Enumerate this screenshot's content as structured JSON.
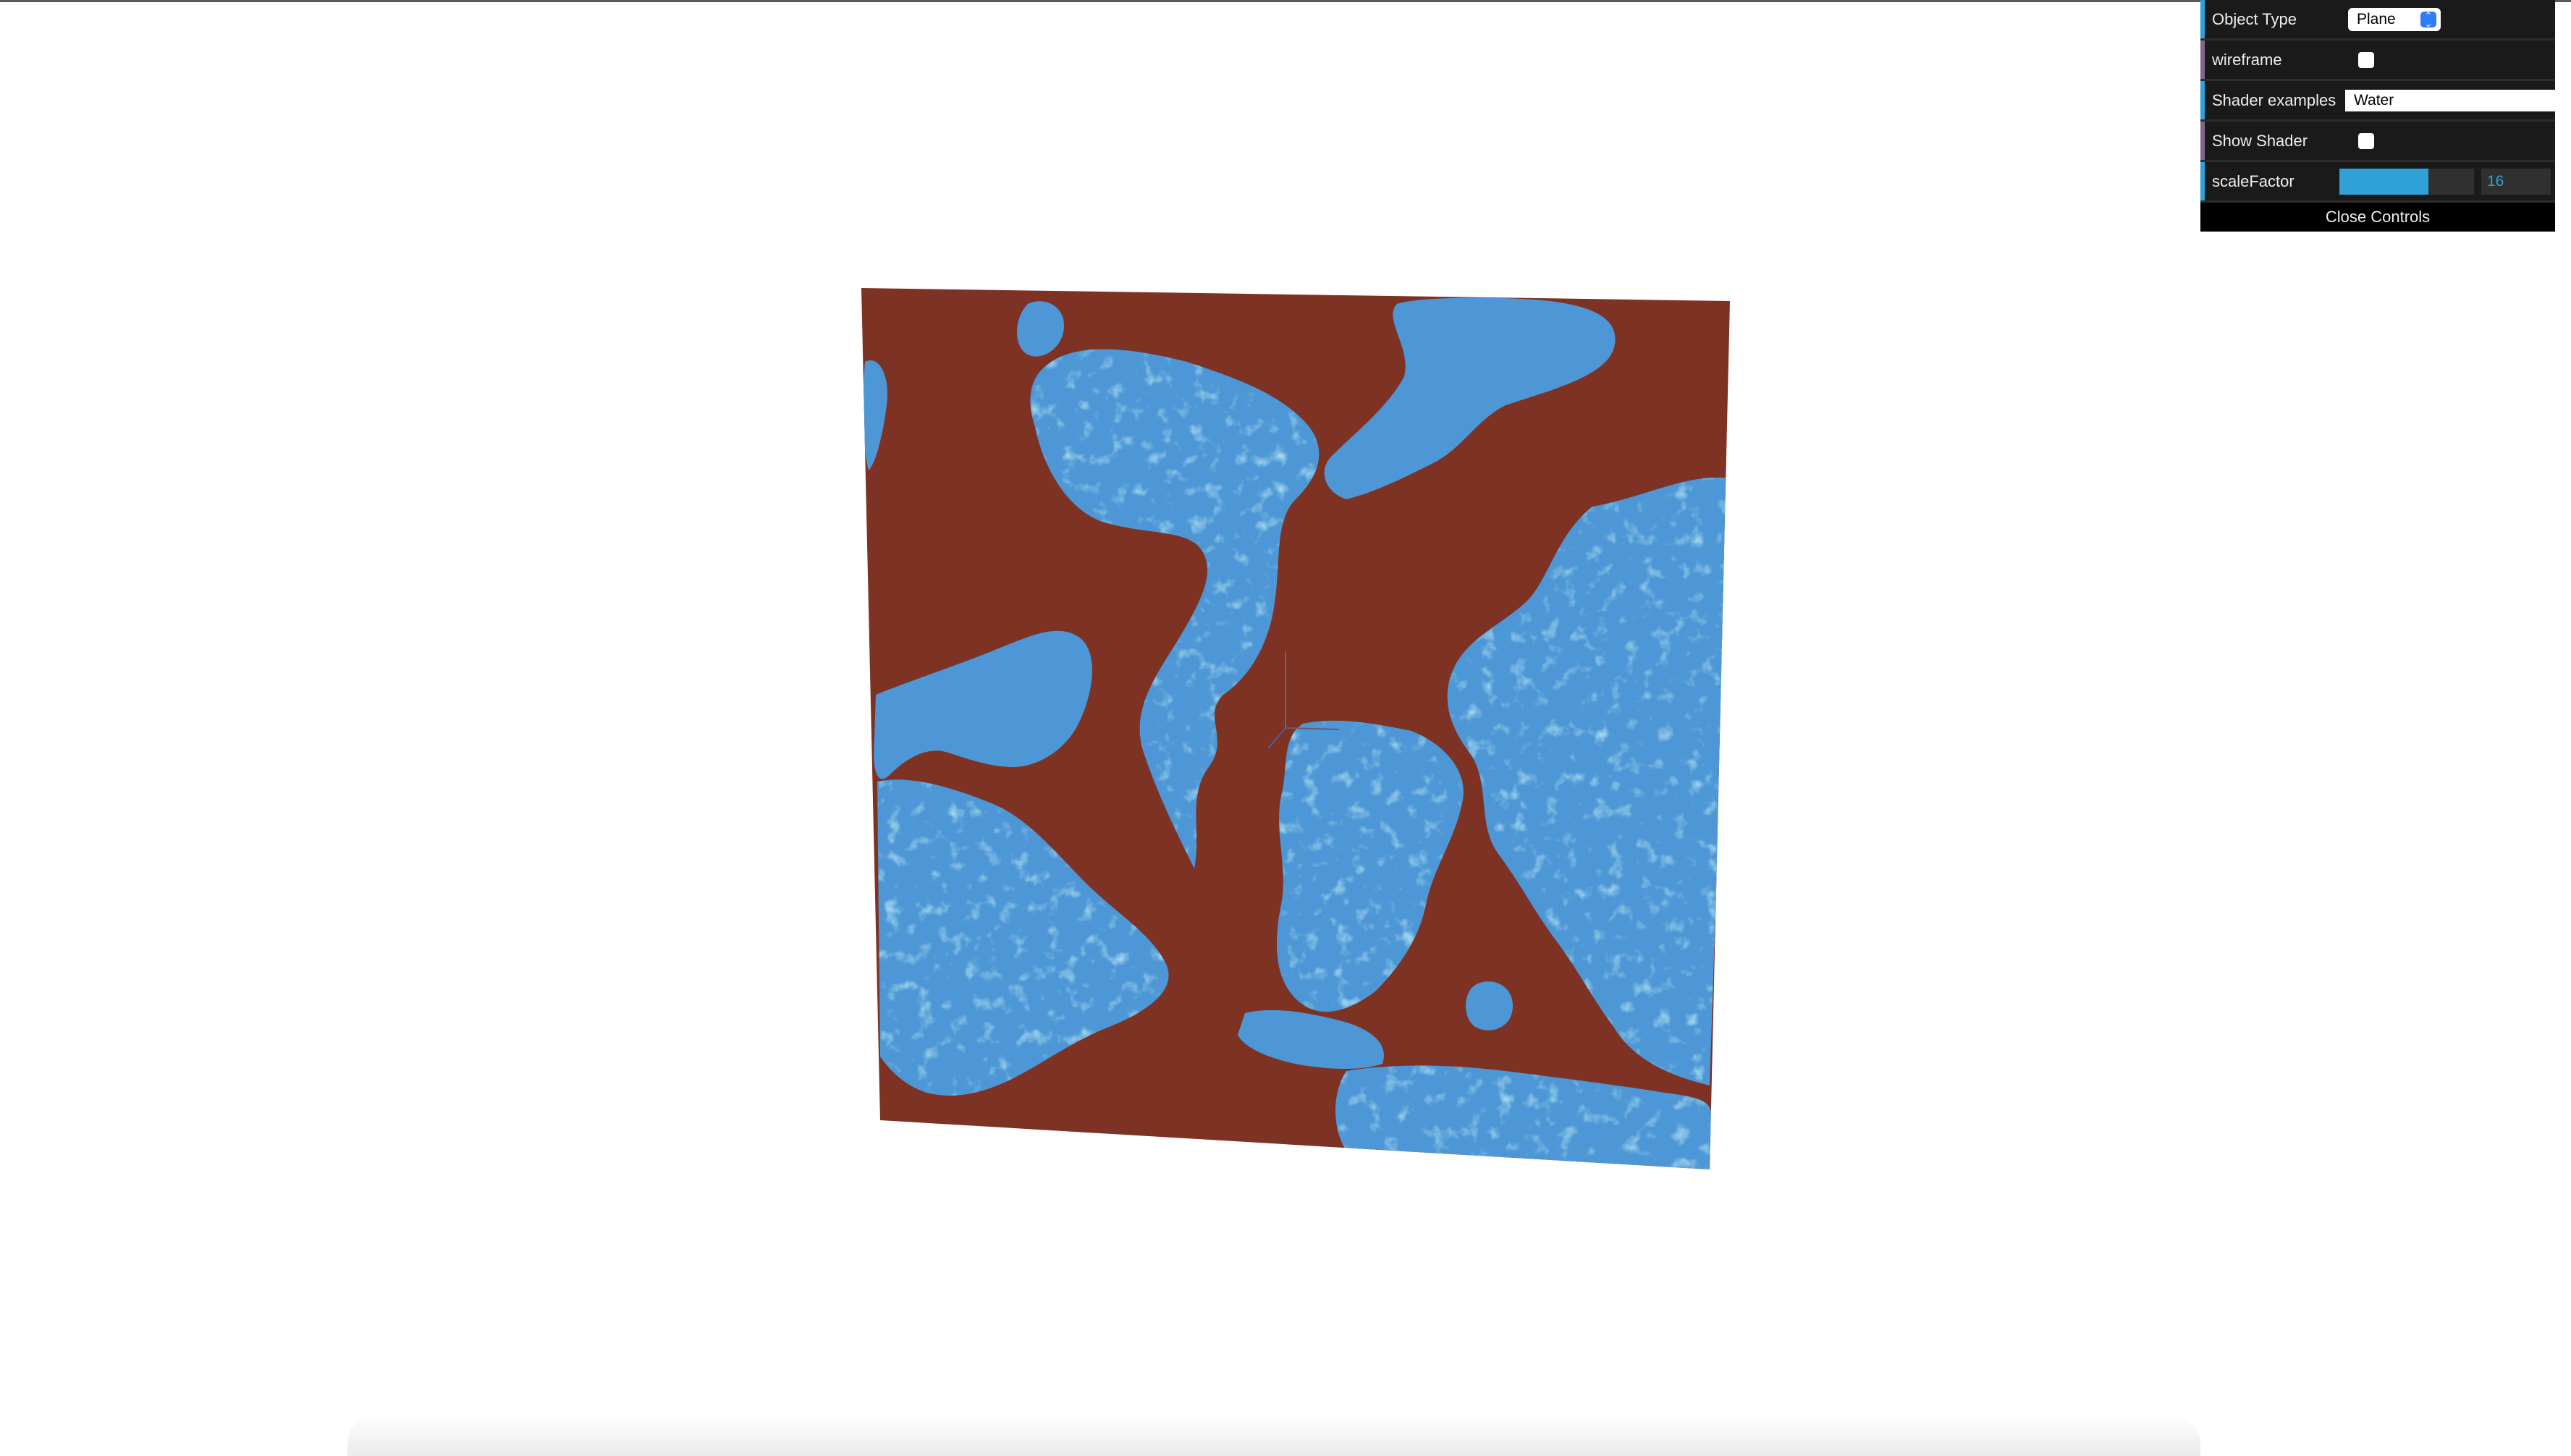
{
  "controls": {
    "object_type": {
      "label": "Object Type",
      "value": "Plane"
    },
    "wireframe": {
      "label": "wireframe",
      "checked": false
    },
    "shader_examples": {
      "label": "Shader examples",
      "value": "Water"
    },
    "show_shader": {
      "label": "Show Shader",
      "checked": false
    },
    "scale_factor": {
      "label": "scaleFactor",
      "value": "16",
      "fill_fraction": 0.66
    },
    "close_label": "Close Controls"
  },
  "colors": {
    "land": "#7d3224",
    "water": "#4d97d6",
    "water_highlight": "#7fd3e6",
    "row_accent_blue": "#2fa1d6",
    "row_accent_purple": "#806787",
    "gui_background": "#1a1a1a"
  },
  "icons": {
    "select_arrows": "select-arrows-icon",
    "axes_helper": "axes-helper-icon"
  }
}
